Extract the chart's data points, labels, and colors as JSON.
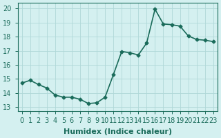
{
  "x": [
    0,
    1,
    2,
    3,
    4,
    5,
    6,
    7,
    8,
    9,
    10,
    11,
    12,
    13,
    14,
    15,
    16,
    17,
    18,
    19,
    20,
    21,
    22,
    23
  ],
  "y": [
    14.7,
    14.9,
    14.6,
    14.35,
    13.85,
    13.7,
    13.7,
    13.55,
    13.25,
    13.3,
    13.7,
    15.3,
    16.95,
    16.85,
    16.7,
    17.55,
    19.95,
    18.9,
    18.85,
    18.75,
    18.05,
    17.8,
    17.75,
    17.65
  ],
  "line_color": "#1a6b5a",
  "marker": "D",
  "marker_size": 2.5,
  "bg_color": "#d4f0f0",
  "grid_color": "#b0d8d8",
  "ylabel_ticks": [
    13,
    14,
    15,
    16,
    17,
    18,
    19,
    20
  ],
  "ylim": [
    12.7,
    20.4
  ],
  "xlim": [
    -0.5,
    23.5
  ],
  "xlabel": "Humidex (Indice chaleur)",
  "xlabel_fontsize": 8,
  "tick_fontsize": 7,
  "line_width": 1.2
}
